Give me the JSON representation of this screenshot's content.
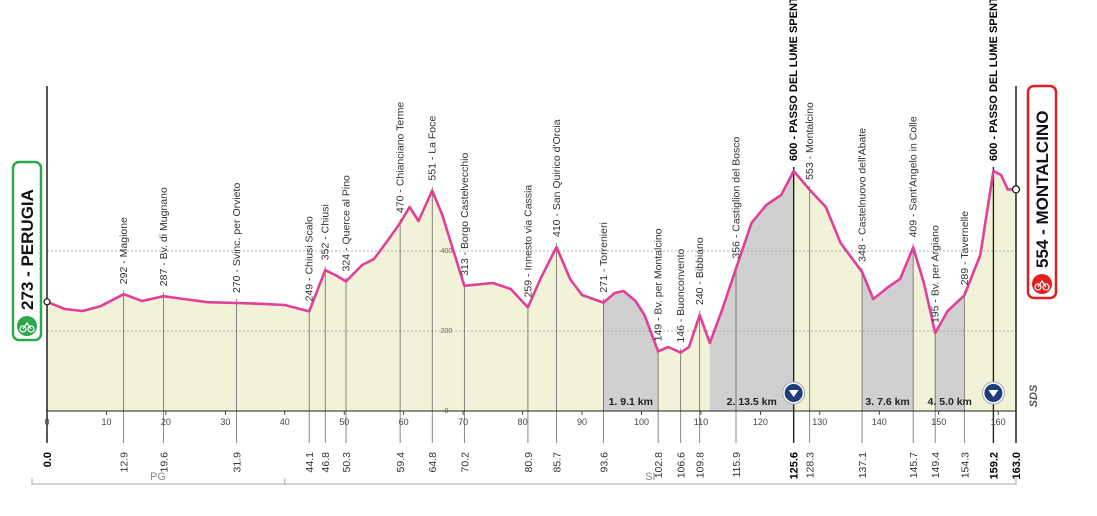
{
  "chart_data": {
    "type": "area",
    "title": "",
    "xlabel": "",
    "ylabel": "",
    "xlim": [
      0,
      163
    ],
    "ylim": [
      0,
      700
    ],
    "grid": true,
    "x_ticks": [
      0,
      10,
      20,
      30,
      40,
      50,
      60,
      70,
      80,
      90,
      100,
      110,
      120,
      130,
      140,
      150,
      160
    ],
    "altitude_marks": [
      0,
      200,
      400
    ],
    "start": {
      "label": "273 - PERUGIA",
      "km": 0.0,
      "elevation": 273
    },
    "finish": {
      "label": "554 - MONTALCINO",
      "km": 163.0,
      "elevation": 554
    },
    "profile": {
      "x": [
        0,
        3,
        6,
        9,
        12.9,
        16,
        19.6,
        23,
        27,
        31.9,
        36,
        40,
        44.1,
        46.8,
        48.5,
        50.3,
        53,
        55,
        57,
        59.4,
        61,
        62.5,
        64.8,
        66.5,
        70.2,
        75,
        78,
        80.9,
        83,
        85.7,
        88,
        90,
        93.6,
        95.5,
        97,
        99,
        100.5,
        102.8,
        104.5,
        106.6,
        108,
        109.8,
        111.5,
        113.5,
        115.9,
        118.5,
        121,
        123.5,
        125.6,
        128.3,
        131,
        133.5,
        137.1,
        139,
        141.5,
        143.5,
        145.7,
        147.5,
        149.4,
        151.5,
        154.3,
        157,
        159.2,
        160.5,
        161.6,
        163.0
      ],
      "y": [
        273,
        255,
        250,
        262,
        292,
        275,
        287,
        280,
        272,
        270,
        268,
        265,
        249,
        352,
        340,
        324,
        365,
        380,
        420,
        470,
        510,
        475,
        551,
        490,
        313,
        320,
        305,
        259,
        330,
        410,
        330,
        290,
        271,
        295,
        300,
        275,
        240,
        149,
        160,
        146,
        160,
        240,
        170,
        250,
        356,
        470,
        515,
        540,
        600,
        553,
        510,
        420,
        348,
        280,
        310,
        330,
        409,
        320,
        195,
        250,
        289,
        390,
        600,
        590,
        554,
        554
      ]
    },
    "waypoints": [
      {
        "km": 12.9,
        "elevation": 292,
        "name": "Magione",
        "label": "292 - Magione"
      },
      {
        "km": 19.6,
        "elevation": 287,
        "name": "Bv. di Mugnano",
        "label": "287 - Bv. di Mugnano"
      },
      {
        "km": 31.9,
        "elevation": 270,
        "name": "Svinc. per Orvieto",
        "label": "270 - Svinc. per Orvieto"
      },
      {
        "km": 44.1,
        "elevation": 249,
        "name": "Chiusi Scalo",
        "label": "249 - Chiusi Scalo"
      },
      {
        "km": 46.8,
        "elevation": 352,
        "name": "Chiusi",
        "label": "352 - Chiusi"
      },
      {
        "km": 50.3,
        "elevation": 324,
        "name": "Querce al Pino",
        "label": "324 - Querce al Pino"
      },
      {
        "km": 59.4,
        "elevation": 470,
        "name": "Chianciano Terme",
        "label": "470 - Chianciano Terme"
      },
      {
        "km": 64.8,
        "elevation": 551,
        "name": "La Foce",
        "label": "551 - La Foce"
      },
      {
        "km": 70.2,
        "elevation": 313,
        "name": "Borgo Castelvecchio",
        "label": "313 - Borgo Castelvecchio"
      },
      {
        "km": 80.9,
        "elevation": 259,
        "name": "Innesto via Cassia",
        "label": "259 - Innesto via Cassia"
      },
      {
        "km": 85.7,
        "elevation": 410,
        "name": "San Quirico d'Orcia",
        "label": "410 - San Quirico d'Orcia"
      },
      {
        "km": 93.6,
        "elevation": 271,
        "name": "Torrenieri",
        "label": "271 - Torrenieri"
      },
      {
        "km": 102.8,
        "elevation": 149,
        "name": "Bv. per Montalcino",
        "label": "149 - Bv. per Montalcino"
      },
      {
        "km": 106.6,
        "elevation": 146,
        "name": "Buonconvento",
        "label": "146 - Buonconvento"
      },
      {
        "km": 109.8,
        "elevation": 240,
        "name": "Bibbiano",
        "label": "240 - Bibbiano"
      },
      {
        "km": 115.9,
        "elevation": 356,
        "name": "Castiglion del Bosco",
        "label": "356 - Castiglion del Bosco"
      },
      {
        "km": 125.6,
        "elevation": 600,
        "name": "PASSO DEL LUME SPENTO",
        "label": "600 - PASSO DEL LUME SPENTO",
        "major": true
      },
      {
        "km": 128.3,
        "elevation": 553,
        "name": "Montalcino",
        "label": "553 - Montalcino"
      },
      {
        "km": 137.1,
        "elevation": 348,
        "name": "Castelnuovo dell'Abate",
        "label": "348 - Castelnuovo dell'Abate"
      },
      {
        "km": 145.7,
        "elevation": 409,
        "name": "Sant'Angelo in Colle",
        "label": "409 - Sant'Angelo in Colle"
      },
      {
        "km": 149.4,
        "elevation": 195,
        "name": "Bv. per Argiano",
        "label": "195 - Bv. per Argiano"
      },
      {
        "km": 154.3,
        "elevation": 289,
        "name": "Tavernelle",
        "label": "289 - Tavernelle"
      },
      {
        "km": 159.2,
        "elevation": 600,
        "name": "PASSO DEL LUME SPENTO",
        "label": "600 - PASSO DEL LUME SPENTO",
        "major": true
      }
    ],
    "km_labels": [
      "0.0",
      "12.9",
      "19.6",
      "31.9",
      "44.1",
      "46.8",
      "50.3",
      "59.4",
      "64.8",
      "70.2",
      "80.9",
      "85.7",
      "93.6",
      "102.8",
      "106.6",
      "109.8",
      "115.9",
      "125.6",
      "128.3",
      "137.1",
      "145.7",
      "149.4",
      "154.3",
      "159.2",
      "163.0"
    ],
    "bold_km_labels": [
      "0.0",
      "125.6",
      "159.2",
      "163.0"
    ],
    "gravel_sectors": [
      {
        "start": 93.6,
        "end": 102.8,
        "label": "1. 9.1 km"
      },
      {
        "start": 111.5,
        "end": 125.6,
        "label": "2. 13.5 km",
        "gpm": true
      },
      {
        "start": 137.1,
        "end": 145.7,
        "label": "3. 7.6 km"
      },
      {
        "start": 149.4,
        "end": 154.3,
        "label": "4. 5.0 km"
      }
    ],
    "gpm_markers": [
      125.6,
      159.2
    ],
    "provinces": [
      {
        "label": "PG",
        "start": 0,
        "end": 40
      },
      {
        "label": "SI",
        "start": 40,
        "end": 163
      }
    ],
    "colors": {
      "profile_line": "#e0409a",
      "fill": "#f2f2d8",
      "gravel": "#d0d0d0",
      "start_border": "#2aa84a",
      "finish_border": "#e02020",
      "gpm": "#1f3d7a"
    },
    "logo": "SDS"
  }
}
